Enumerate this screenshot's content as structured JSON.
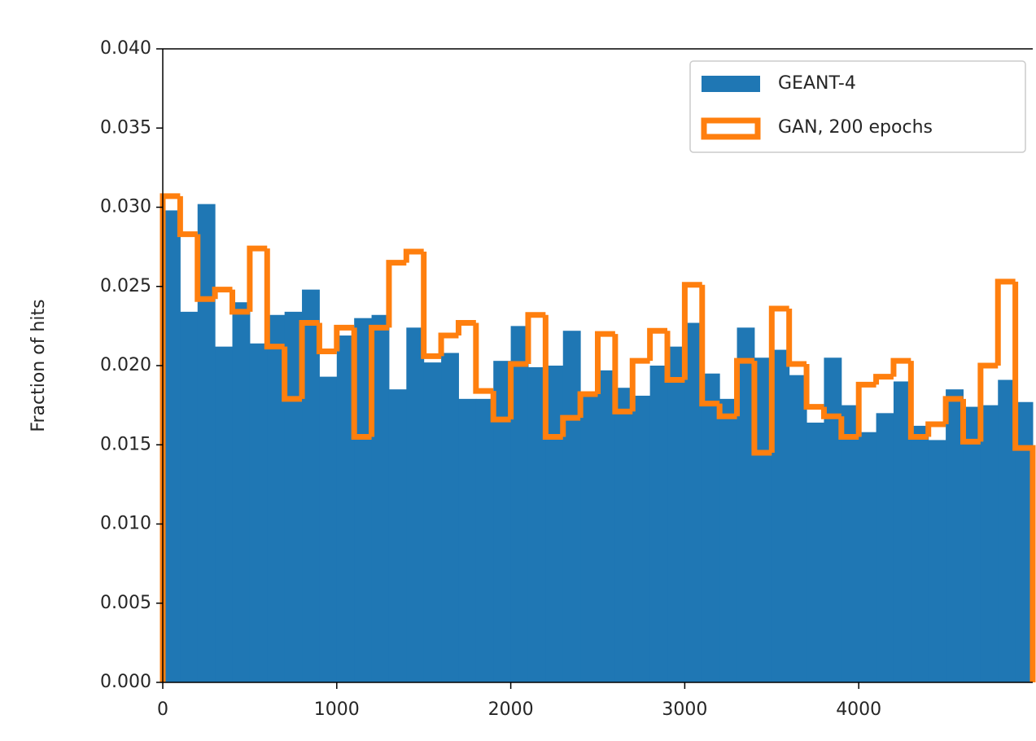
{
  "chart_data": {
    "type": "histogram",
    "ylabel": "Fraction of hits",
    "bins": [
      0,
      100,
      200,
      300,
      400,
      500,
      600,
      700,
      800,
      900,
      1000,
      1100,
      1200,
      1300,
      1400,
      1500,
      1600,
      1700,
      1800,
      1900,
      2000,
      2100,
      2200,
      2300,
      2400,
      2500,
      2600,
      2700,
      2800,
      2900,
      3000,
      3100,
      3200,
      3300,
      3400,
      3500,
      3600,
      3700,
      3800,
      3900,
      4000,
      4100,
      4200,
      4300,
      4400,
      4500,
      4600,
      4700,
      4800,
      4900,
      5000
    ],
    "series": [
      {
        "name": "GEANT-4",
        "color": "#1f77b4",
        "histtype": "bar",
        "values": [
          0.0298,
          0.0234,
          0.0302,
          0.0212,
          0.024,
          0.0214,
          0.0232,
          0.0234,
          0.0248,
          0.0193,
          0.0219,
          0.023,
          0.0232,
          0.0185,
          0.0224,
          0.0202,
          0.0208,
          0.0179,
          0.0179,
          0.0203,
          0.0225,
          0.0199,
          0.02,
          0.0222,
          0.0182,
          0.0197,
          0.0186,
          0.0181,
          0.02,
          0.0212,
          0.0227,
          0.0195,
          0.0179,
          0.0224,
          0.0205,
          0.021,
          0.0194,
          0.0164,
          0.0205,
          0.0175,
          0.0158,
          0.017,
          0.019,
          0.0162,
          0.0153,
          0.0185,
          0.0174,
          0.0175,
          0.0191,
          0.0177
        ]
      },
      {
        "name": "GAN, 200 epochs",
        "color": "#ff7f0e",
        "histtype": "step",
        "values": [
          0.0307,
          0.0283,
          0.0242,
          0.0248,
          0.0234,
          0.0274,
          0.0212,
          0.0179,
          0.0227,
          0.0209,
          0.0224,
          0.0155,
          0.0224,
          0.0265,
          0.0272,
          0.0206,
          0.0219,
          0.0227,
          0.0184,
          0.0166,
          0.0201,
          0.0232,
          0.0155,
          0.0167,
          0.0182,
          0.022,
          0.0171,
          0.0203,
          0.0222,
          0.0191,
          0.0251,
          0.0176,
          0.0168,
          0.0203,
          0.0145,
          0.0236,
          0.0201,
          0.0174,
          0.0168,
          0.0155,
          0.0188,
          0.0193,
          0.0203,
          0.0155,
          0.0163,
          0.0179,
          0.0152,
          0.02,
          0.0253,
          0.0148
        ]
      }
    ],
    "xlim": [
      0,
      5000
    ],
    "xticks": [
      0,
      1000,
      2000,
      3000,
      4000
    ],
    "ylim": [
      0,
      0.04
    ],
    "yticks": [
      {
        "value": 0,
        "label": "0.000"
      },
      {
        "value": 0.005,
        "label": "0.005"
      },
      {
        "value": 0.01,
        "label": "0.010"
      },
      {
        "value": 0.015,
        "label": "0.015"
      },
      {
        "value": 0.02,
        "label": "0.020"
      },
      {
        "value": 0.025,
        "label": "0.025"
      },
      {
        "value": 0.03,
        "label": "0.030"
      },
      {
        "value": 0.035,
        "label": "0.035"
      },
      {
        "value": 0.04,
        "label": "0.040"
      }
    ],
    "legend": "upper right"
  }
}
